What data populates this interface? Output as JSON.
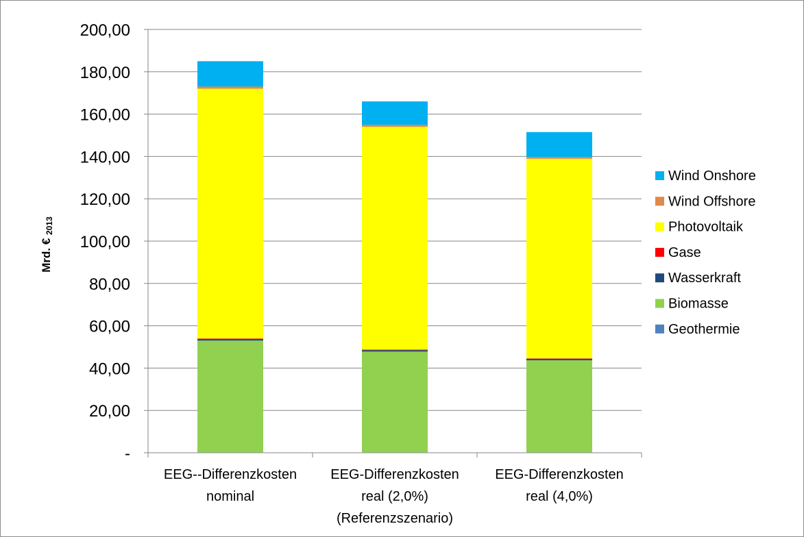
{
  "chart_data": {
    "type": "bar",
    "stacked": true,
    "ylabel": "Mrd. €",
    "ylabel_sub": "2013",
    "ylim": [
      0,
      200
    ],
    "ytick_labels": [
      "-",
      "20,00",
      "40,00",
      "60,00",
      "80,00",
      "100,00",
      "120,00",
      "140,00",
      "160,00",
      "180,00",
      "200,00"
    ],
    "ytick_values": [
      0,
      20,
      40,
      60,
      80,
      100,
      120,
      140,
      160,
      180,
      200
    ],
    "grid": true,
    "legend_position": "right",
    "categories": [
      [
        "EEG--Differenzkosten",
        "nominal"
      ],
      [
        "EEG-Differenzkosten",
        "real (2,0%)",
        "(Referenzszenario)"
      ],
      [
        "EEG-Differenzkosten",
        "real (4,0%)"
      ]
    ],
    "series": [
      {
        "name": "Geothermie",
        "color": "#4F81BD",
        "values": [
          0.2,
          0.2,
          0.2
        ]
      },
      {
        "name": "Biomasse",
        "color": "#92D050",
        "values": [
          52.8,
          47.6,
          43.5
        ]
      },
      {
        "name": "Wasserkraft",
        "color": "#1F497D",
        "values": [
          0.8,
          0.7,
          0.7
        ]
      },
      {
        "name": "Gase",
        "color": "#FF0000",
        "values": [
          0.2,
          0.2,
          0.2
        ]
      },
      {
        "name": "Photovoltaik",
        "color": "#FFFF00",
        "values": [
          118.0,
          105.3,
          94.3
        ]
      },
      {
        "name": "Wind Offshore",
        "color": "#E0894A",
        "values": [
          1.0,
          0.9,
          0.8
        ]
      },
      {
        "name": "Wind Onshore",
        "color": "#00B0F0",
        "values": [
          12.0,
          11.1,
          11.8
        ]
      }
    ],
    "legend_order": [
      "Wind Onshore",
      "Wind Offshore",
      "Photovoltaik",
      "Gase",
      "Wasserkraft",
      "Biomasse",
      "Geothermie"
    ]
  }
}
